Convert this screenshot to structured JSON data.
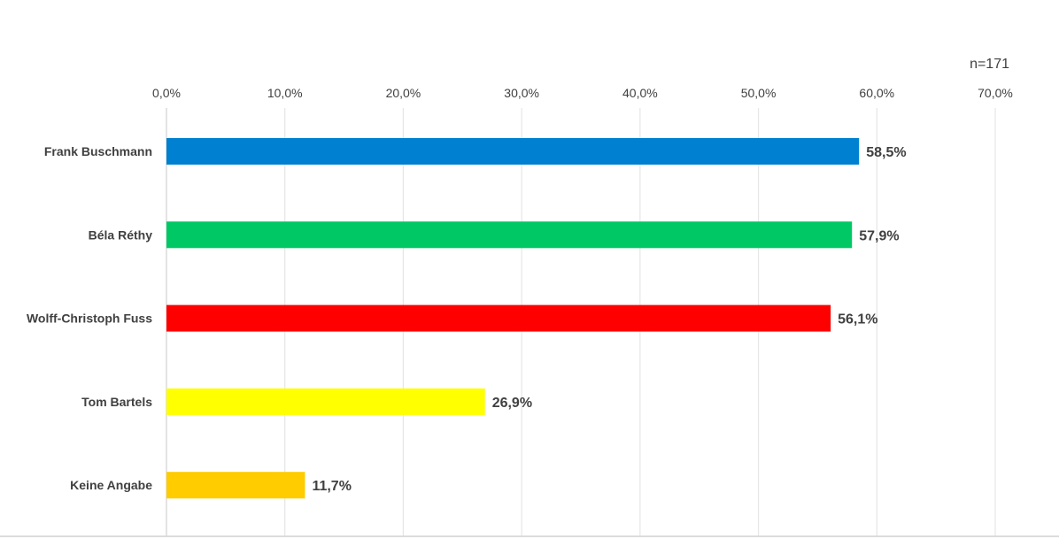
{
  "sample_note": "n=171",
  "chart_data": {
    "type": "bar",
    "orientation": "horizontal",
    "categories": [
      "Frank Buschmann",
      "Béla Réthy",
      "Wolff-Christoph Fuss",
      "Tom Bartels",
      "Keine Angabe"
    ],
    "values": [
      58.5,
      57.9,
      56.1,
      26.9,
      11.7
    ],
    "data_labels": [
      "58,5%",
      "57,9%",
      "56,1%",
      "26,9%",
      "11,7%"
    ],
    "colors": [
      "#0080d0",
      "#00c864",
      "#ff0000",
      "#ffff00",
      "#ffcc00"
    ],
    "xlim": [
      0,
      70
    ],
    "x_ticks": [
      0,
      10,
      20,
      30,
      40,
      50,
      60,
      70
    ],
    "x_tick_labels": [
      "0,0%",
      "10,0%",
      "20,0%",
      "30,0%",
      "40,0%",
      "50,0%",
      "60,0%",
      "70,0%"
    ],
    "axis_position": "top",
    "grid": true,
    "gridline_color": "#e6e6e6",
    "title": "",
    "xlabel": "",
    "ylabel": ""
  }
}
